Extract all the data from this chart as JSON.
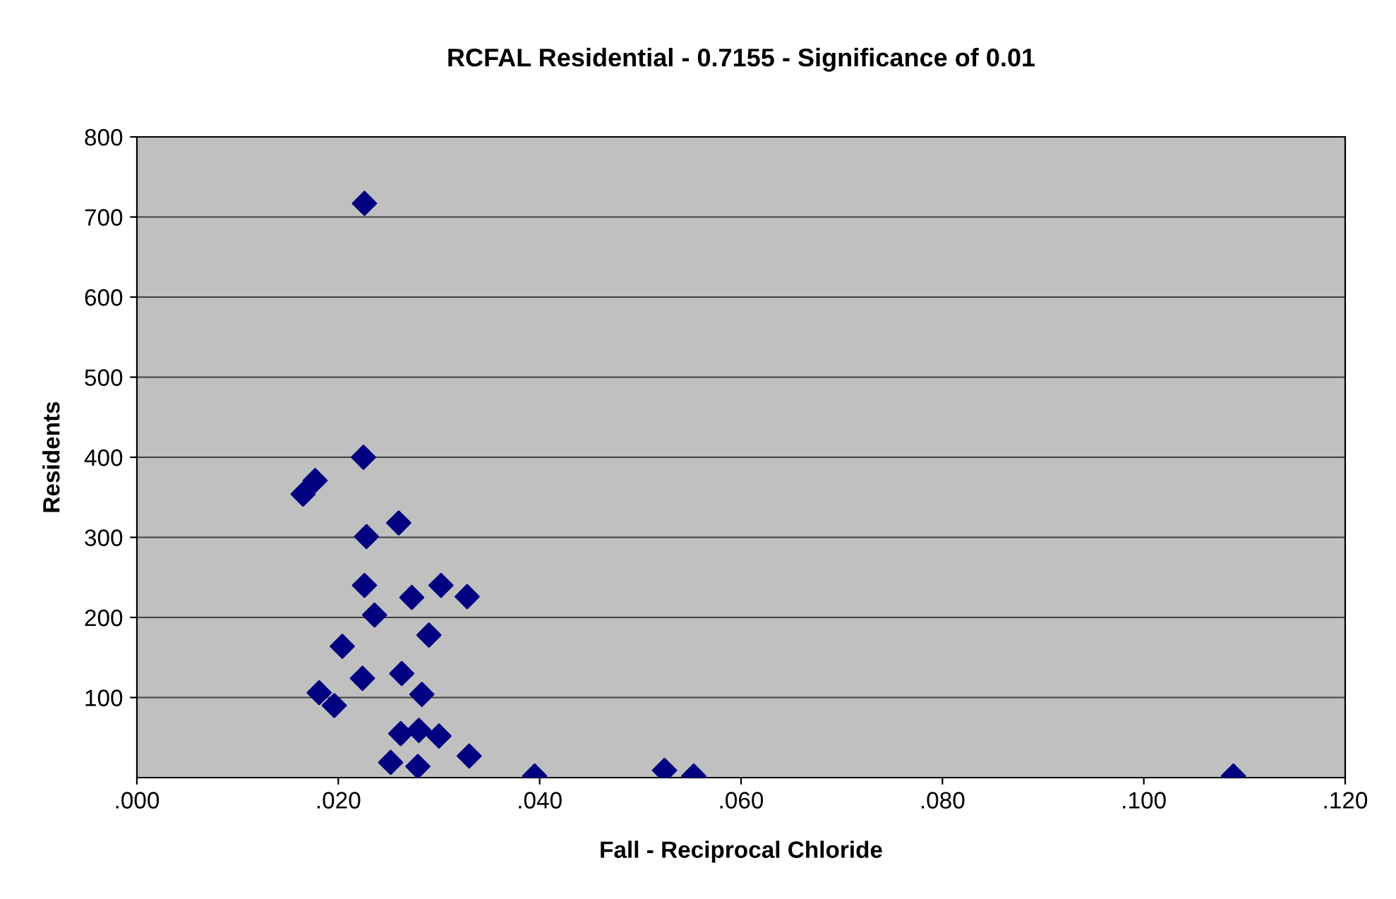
{
  "chart_data": {
    "type": "scatter",
    "title": "RCFAL Residential - 0.7155 - Significance of 0.01",
    "xlabel": "Fall - Reciprocal Chloride",
    "ylabel": "Residents",
    "x": [
      0.0226,
      0.0225,
      0.0165,
      0.0177,
      0.026,
      0.0228,
      0.0226,
      0.0273,
      0.0302,
      0.0328,
      0.0236,
      0.029,
      0.0204,
      0.0224,
      0.0263,
      0.0181,
      0.0196,
      0.0283,
      0.0262,
      0.028,
      0.03,
      0.0252,
      0.0279,
      0.033,
      0.0395,
      0.0524,
      0.0553,
      0.1089
    ],
    "series": [
      {
        "color": "#000080",
        "values": [
          717,
          400,
          354,
          371,
          318,
          301,
          240,
          225,
          240,
          226,
          203,
          178,
          164,
          124,
          130,
          106,
          90,
          104,
          55,
          59,
          52,
          19,
          14,
          27,
          2,
          9,
          2,
          2
        ]
      }
    ],
    "marker": "diamond",
    "grid": "y",
    "xlim": [
      0,
      0.12
    ],
    "xticks": [
      {
        "value": 0,
        "label": ".000"
      },
      {
        "value": 0.02,
        "label": ".020"
      },
      {
        "value": 0.04,
        "label": ".040"
      },
      {
        "value": 0.06,
        "label": ".060"
      },
      {
        "value": 0.08,
        "label": ".080"
      },
      {
        "value": 0.1,
        "label": ".100"
      },
      {
        "value": 0.12,
        "label": ".120"
      }
    ],
    "ylim": [
      0,
      800
    ],
    "yticks": [
      100,
      200,
      300,
      400,
      500,
      600,
      700,
      800
    ]
  }
}
